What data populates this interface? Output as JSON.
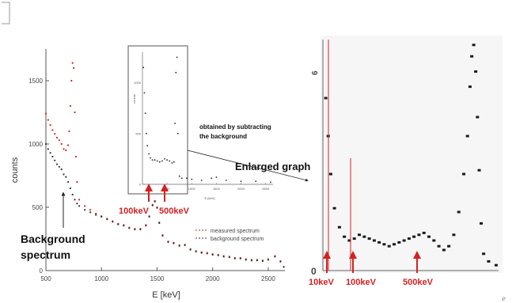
{
  "colors": {
    "measured": "#d62020",
    "background": "#333333",
    "annotation_red": "#d61f1f",
    "axis": "#444444"
  },
  "annotations": {
    "background_spectrum_line1": "Background",
    "background_spectrum_line2": "spectrum",
    "inset_note_line1": "obtained by subtracting",
    "inset_note_line2": "the background",
    "enlarged_graph": "Enlarged graph",
    "arrow_100kev": "100keV",
    "arrow_500kev": "500keV"
  },
  "chart_data": [
    {
      "type": "scatter",
      "xlabel": "E [keV]",
      "ylabel": "counts",
      "xlim": [
        500,
        2650
      ],
      "ylim": [
        0,
        1750
      ],
      "x_ticks": [
        500,
        1000,
        1500,
        2000,
        2500
      ],
      "y_ticks": [
        0,
        500,
        1000,
        1500
      ],
      "legend_position": "right",
      "grid": false,
      "series": [
        {
          "name": "measured spectrum",
          "points": [
            [
              500,
              1240
            ],
            [
              520,
              1190
            ],
            [
              540,
              1150
            ],
            [
              560,
              1110
            ],
            [
              580,
              1080
            ],
            [
              600,
              1050
            ],
            [
              620,
              1030
            ],
            [
              640,
              1000
            ],
            [
              660,
              960
            ],
            [
              680,
              950
            ],
            [
              700,
              990
            ],
            [
              710,
              1100
            ],
            [
              720,
              1300
            ],
            [
              730,
              1500
            ],
            [
              740,
              1640
            ],
            [
              750,
              1600
            ],
            [
              760,
              1250
            ],
            [
              770,
              900
            ],
            [
              780,
              700
            ],
            [
              800,
              560
            ],
            [
              850,
              510
            ],
            [
              900,
              480
            ],
            [
              950,
              450
            ],
            [
              1000,
              430
            ],
            [
              1050,
              410
            ],
            [
              1100,
              390
            ],
            [
              1150,
              370
            ],
            [
              1200,
              360
            ],
            [
              1250,
              340
            ],
            [
              1300,
              330
            ],
            [
              1350,
              330
            ],
            [
              1400,
              360
            ],
            [
              1430,
              430
            ],
            [
              1460,
              520
            ],
            [
              1480,
              550
            ],
            [
              1500,
              500
            ],
            [
              1520,
              380
            ],
            [
              1550,
              280
            ],
            [
              1600,
              230
            ],
            [
              1650,
              220
            ],
            [
              1700,
              200
            ],
            [
              1750,
              205
            ],
            [
              1800,
              170
            ],
            [
              1850,
              155
            ],
            [
              1900,
              145
            ],
            [
              1950,
              140
            ],
            [
              2000,
              130
            ],
            [
              2050,
              125
            ],
            [
              2100,
              115
            ],
            [
              2150,
              110
            ],
            [
              2200,
              100
            ],
            [
              2250,
              100
            ],
            [
              2300,
              90
            ],
            [
              2350,
              85
            ],
            [
              2400,
              85
            ],
            [
              2450,
              80
            ],
            [
              2500,
              90
            ],
            [
              2560,
              115
            ],
            [
              2610,
              75
            ],
            [
              2640,
              30
            ]
          ]
        },
        {
          "name": "background spectrum",
          "points": [
            [
              500,
              1000
            ],
            [
              520,
              960
            ],
            [
              540,
              930
            ],
            [
              560,
              900
            ],
            [
              580,
              870
            ],
            [
              600,
              840
            ],
            [
              620,
              820
            ],
            [
              640,
              800
            ],
            [
              660,
              760
            ],
            [
              680,
              740
            ],
            [
              700,
              700
            ],
            [
              720,
              650
            ],
            [
              740,
              600
            ],
            [
              760,
              560
            ],
            [
              780,
              530
            ],
            [
              800,
              510
            ],
            [
              850,
              480
            ],
            [
              900,
              460
            ],
            [
              950,
              440
            ],
            [
              1000,
              425
            ],
            [
              1050,
              405
            ],
            [
              1100,
              385
            ],
            [
              1150,
              365
            ],
            [
              1200,
              355
            ],
            [
              1250,
              335
            ],
            [
              1300,
              325
            ],
            [
              1350,
              325
            ],
            [
              1400,
              355
            ],
            [
              1430,
              425
            ],
            [
              1460,
              515
            ],
            [
              1480,
              545
            ],
            [
              1500,
              495
            ],
            [
              1520,
              375
            ],
            [
              1550,
              275
            ],
            [
              1600,
              225
            ],
            [
              1650,
              215
            ],
            [
              1700,
              195
            ],
            [
              1750,
              200
            ],
            [
              1800,
              165
            ],
            [
              1850,
              150
            ],
            [
              1900,
              140
            ],
            [
              1950,
              135
            ],
            [
              2000,
              125
            ],
            [
              2050,
              120
            ],
            [
              2100,
              110
            ],
            [
              2150,
              105
            ],
            [
              2200,
              95
            ],
            [
              2250,
              95
            ],
            [
              2300,
              85
            ],
            [
              2350,
              80
            ],
            [
              2400,
              80
            ],
            [
              2450,
              75
            ],
            [
              2500,
              85
            ],
            [
              2560,
              110
            ],
            [
              2610,
              70
            ],
            [
              2640,
              28
            ]
          ]
        }
      ]
    },
    {
      "type": "scatter",
      "title": "",
      "xlabel": "E [keV]",
      "ylabel": "counts",
      "x_ticks": [
        "",
        "500",
        "1000",
        "1500",
        "2000",
        "2500"
      ],
      "y_ticks": [
        "0",
        "500",
        "1000"
      ],
      "xlim": [
        0,
        2650
      ],
      "ylim": [
        0,
        1300
      ],
      "series": [
        {
          "points": [
            [
              20,
              1150
            ],
            [
              40,
              900
            ],
            [
              60,
              700
            ],
            [
              80,
              500
            ],
            [
              100,
              380
            ],
            [
              130,
              300
            ],
            [
              160,
              260
            ],
            [
              200,
              240
            ],
            [
              250,
              240
            ],
            [
              300,
              230
            ],
            [
              350,
              220
            ],
            [
              400,
              230
            ],
            [
              450,
              250
            ],
            [
              500,
              240
            ],
            [
              550,
              230
            ],
            [
              600,
              210
            ],
            [
              640,
              220
            ],
            [
              660,
              600
            ],
            [
              680,
              1100
            ],
            [
              700,
              1250
            ],
            [
              720,
              500
            ],
            [
              750,
              80
            ],
            [
              800,
              60
            ],
            [
              900,
              60
            ],
            [
              1000,
              50
            ],
            [
              1200,
              40
            ],
            [
              1400,
              60
            ],
            [
              1500,
              70
            ],
            [
              1700,
              40
            ],
            [
              2000,
              30
            ],
            [
              2300,
              30
            ],
            [
              2600,
              20
            ]
          ]
        }
      ]
    },
    {
      "type": "scatter",
      "x_ticks": [],
      "y_ticks": [
        "6",
        "0"
      ],
      "xlim": [
        0,
        700
      ],
      "ylim": [
        0,
        6
      ],
      "arrow_labels": [
        "10keV",
        "100keV",
        "500keV"
      ],
      "series": [
        {
          "points": [
            [
              5,
              4.5
            ],
            [
              15,
              3.5
            ],
            [
              25,
              2.5
            ],
            [
              40,
              1.6
            ],
            [
              60,
              1.1
            ],
            [
              80,
              0.85
            ],
            [
              100,
              0.75
            ],
            [
              120,
              0.8
            ],
            [
              140,
              0.9
            ],
            [
              160,
              0.85
            ],
            [
              180,
              0.8
            ],
            [
              200,
              0.75
            ],
            [
              220,
              0.7
            ],
            [
              240,
              0.65
            ],
            [
              260,
              0.6
            ],
            [
              280,
              0.65
            ],
            [
              300,
              0.7
            ],
            [
              320,
              0.75
            ],
            [
              340,
              0.8
            ],
            [
              360,
              0.85
            ],
            [
              380,
              0.9
            ],
            [
              400,
              0.95
            ],
            [
              420,
              0.85
            ],
            [
              440,
              0.75
            ],
            [
              460,
              0.6
            ],
            [
              480,
              0.5
            ],
            [
              500,
              0.6
            ],
            [
              520,
              0.9
            ],
            [
              540,
              1.5
            ],
            [
              560,
              2.5
            ],
            [
              575,
              3.5
            ],
            [
              585,
              4.8
            ],
            [
              592,
              5.6
            ],
            [
              600,
              5.9
            ],
            [
              608,
              5.2
            ],
            [
              615,
              4.0
            ],
            [
              622,
              2.6
            ],
            [
              630,
              1.2
            ],
            [
              640,
              0.4
            ],
            [
              660,
              0.2
            ],
            [
              690,
              0.1
            ]
          ]
        }
      ]
    }
  ]
}
